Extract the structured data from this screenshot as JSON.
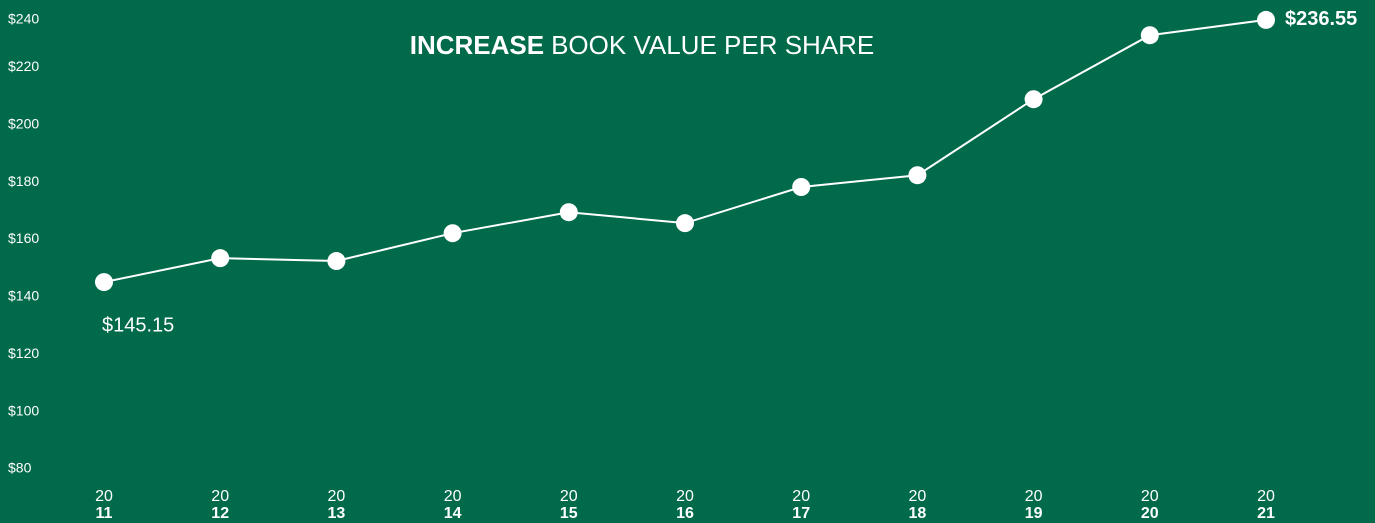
{
  "chart_data": {
    "type": "line",
    "title": [
      "INCREASE",
      "BOOK VALUE PER SHARE"
    ],
    "categories": [
      [
        "20",
        "11"
      ],
      [
        "20",
        "12"
      ],
      [
        "20",
        "13"
      ],
      [
        "20",
        "14"
      ],
      [
        "20",
        "15"
      ],
      [
        "20",
        "16"
      ],
      [
        "20",
        "17"
      ],
      [
        "20",
        "18"
      ],
      [
        "20",
        "19"
      ],
      [
        "20",
        "20"
      ],
      [
        "20",
        "21"
      ]
    ],
    "values": [
      145.15,
      153.5,
      152.5,
      162.2,
      169.5,
      165.7,
      178.3,
      182.4,
      208.9,
      231.2,
      236.55
    ],
    "value_labels": [
      "$145.15",
      null,
      null,
      null,
      null,
      null,
      null,
      null,
      null,
      null,
      "$236.55"
    ],
    "color": "#ffffff",
    "ylim": [
      80,
      240
    ],
    "yticks": [
      {
        "value": 80,
        "label": "$80"
      },
      {
        "value": 100,
        "label": "$100"
      },
      {
        "value": 120,
        "label": "$120"
      },
      {
        "value": 140,
        "label": "$140"
      },
      {
        "value": 160,
        "label": "$160"
      },
      {
        "value": 180,
        "label": "$180"
      },
      {
        "value": 200,
        "label": "$200"
      },
      {
        "value": 220,
        "label": "$220"
      },
      {
        "value": 240,
        "label": "$240"
      }
    ],
    "grid": false
  }
}
